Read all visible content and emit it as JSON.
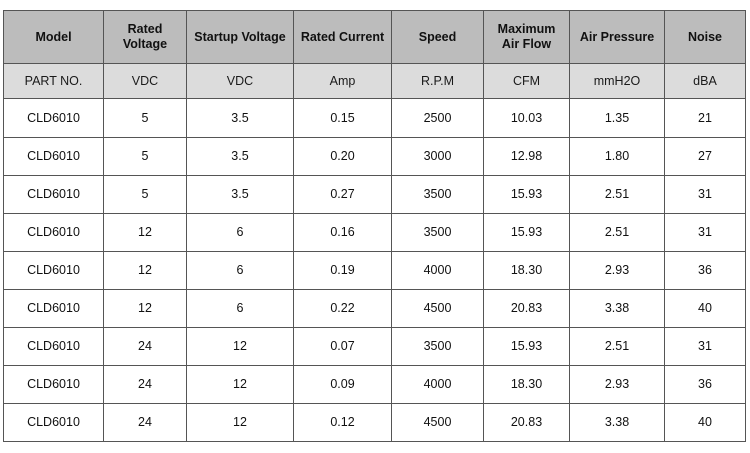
{
  "table": {
    "headers": [
      "Model",
      "Rated\nVoltage",
      "Startup Voltage",
      "Rated Current",
      "Speed",
      "Maximum\nAir Flow",
      "Air Pressure",
      "Noise"
    ],
    "units": [
      "PART NO.",
      "VDC",
      "VDC",
      "Amp",
      "R.P.M",
      "CFM",
      "mmH2O",
      "dBA"
    ],
    "rows": [
      [
        "CLD6010",
        "5",
        "3.5",
        "0.15",
        "2500",
        "10.03",
        "1.35",
        "21"
      ],
      [
        "CLD6010",
        "5",
        "3.5",
        "0.20",
        "3000",
        "12.98",
        "1.80",
        "27"
      ],
      [
        "CLD6010",
        "5",
        "3.5",
        "0.27",
        "3500",
        "15.93",
        "2.51",
        "31"
      ],
      [
        "CLD6010",
        "12",
        "6",
        "0.16",
        "3500",
        "15.93",
        "2.51",
        "31"
      ],
      [
        "CLD6010",
        "12",
        "6",
        "0.19",
        "4000",
        "18.30",
        "2.93",
        "36"
      ],
      [
        "CLD6010",
        "12",
        "6",
        "0.22",
        "4500",
        "20.83",
        "3.38",
        "40"
      ],
      [
        "CLD6010",
        "24",
        "12",
        "0.07",
        "3500",
        "15.93",
        "2.51",
        "31"
      ],
      [
        "CLD6010",
        "24",
        "12",
        "0.09",
        "4000",
        "18.30",
        "2.93",
        "36"
      ],
      [
        "CLD6010",
        "24",
        "12",
        "0.12",
        "4500",
        "20.83",
        "3.38",
        "40"
      ]
    ]
  },
  "colors": {
    "header_bg": "#bcbcbc",
    "unit_row_bg": "#dcdcdc",
    "border": "#555555"
  }
}
